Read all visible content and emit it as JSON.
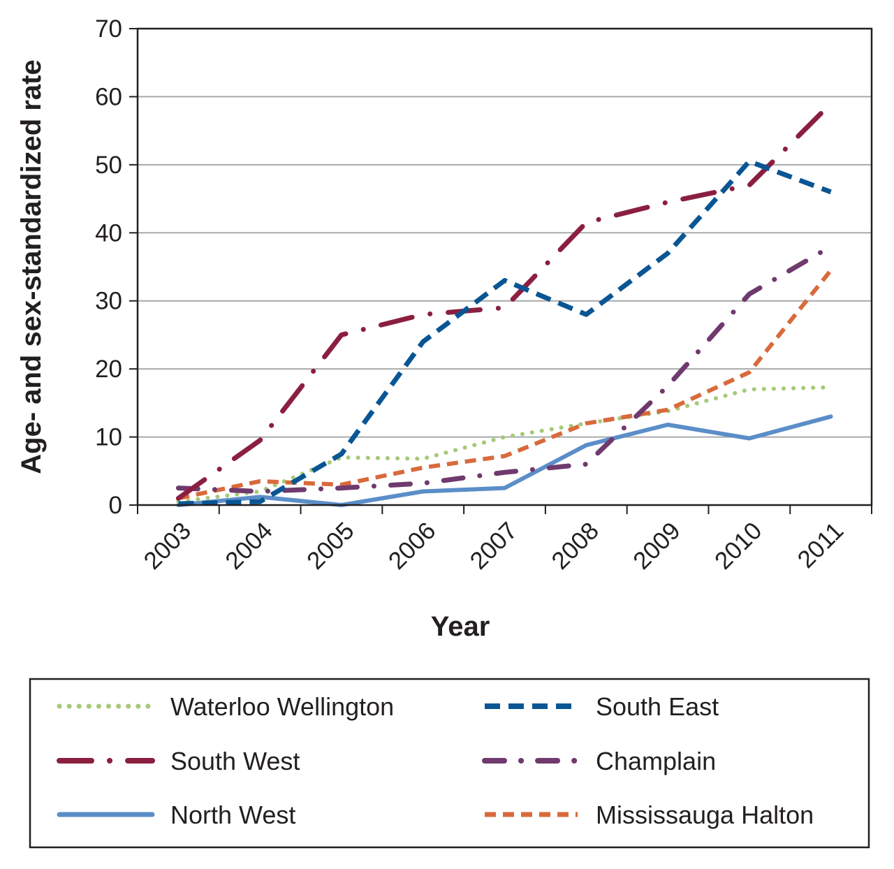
{
  "chart_data": {
    "type": "line",
    "xlabel": "Year",
    "ylabel": "Age- and sex-standardized rate",
    "x": [
      "2003",
      "2004",
      "2005",
      "2006",
      "2007",
      "2008",
      "2009",
      "2010",
      "2011"
    ],
    "ylim": [
      0,
      70
    ],
    "yticks": [
      "0",
      "10",
      "20",
      "30",
      "40",
      "50",
      "60",
      "70"
    ],
    "grid": true,
    "legend_position": "bottom",
    "series": [
      {
        "name": "Waterloo Wellington",
        "values": [
          0.5,
          2.0,
          7.0,
          6.8,
          10.0,
          12.0,
          13.8,
          17.0,
          17.3
        ],
        "color": "#a6c97a",
        "style": "dotted"
      },
      {
        "name": "South East",
        "values": [
          0.2,
          0.5,
          7.5,
          24.0,
          33.0,
          28.0,
          37.0,
          50.5,
          46.0
        ],
        "color": "#0a5694",
        "style": "dashed"
      },
      {
        "name": "South West",
        "values": [
          1.0,
          9.5,
          25.0,
          28.0,
          29.0,
          41.5,
          44.5,
          47.0,
          59.0
        ],
        "color": "#8b1f3f",
        "style": "longdash-dot"
      },
      {
        "name": "Champlain",
        "values": [
          2.5,
          2.0,
          2.5,
          3.2,
          4.8,
          6.0,
          17.5,
          31.0,
          38.0
        ],
        "color": "#6f3a6d",
        "style": "dash-dot"
      },
      {
        "name": "North West",
        "values": [
          0.0,
          1.2,
          0.0,
          2.0,
          2.5,
          8.8,
          11.8,
          9.8,
          13.0
        ],
        "color": "#5b8ec8",
        "style": "solid"
      },
      {
        "name": "Mississauga Halton",
        "values": [
          1.0,
          3.5,
          3.0,
          5.5,
          7.2,
          12.0,
          14.0,
          19.5,
          34.5
        ],
        "color": "#d86a3c",
        "style": "shortdash"
      }
    ]
  }
}
